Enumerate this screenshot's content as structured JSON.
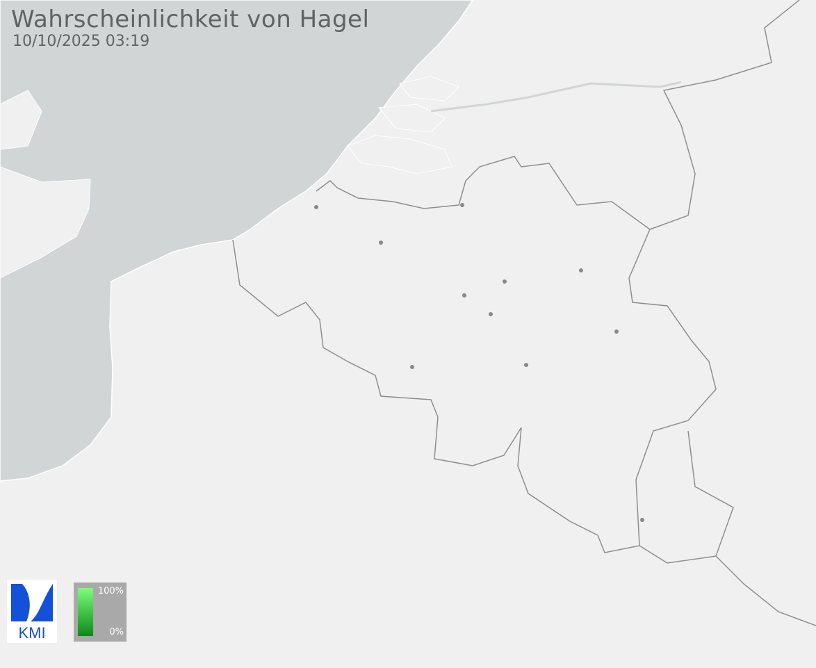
{
  "header": {
    "title": "Wahrscheinlichkeit von Hagel",
    "timestamp": "10/10/2025 03:19"
  },
  "legend": {
    "max_label": "100%",
    "min_label": "0%",
    "color_max": "#7dfc7d",
    "color_min": "#0b8a18"
  },
  "logo": {
    "text": "KMI",
    "color": "#1450d8"
  },
  "colors": {
    "sea": "#d2d5d6",
    "land": "#eff0ef",
    "border": "#8e8e8e"
  }
}
